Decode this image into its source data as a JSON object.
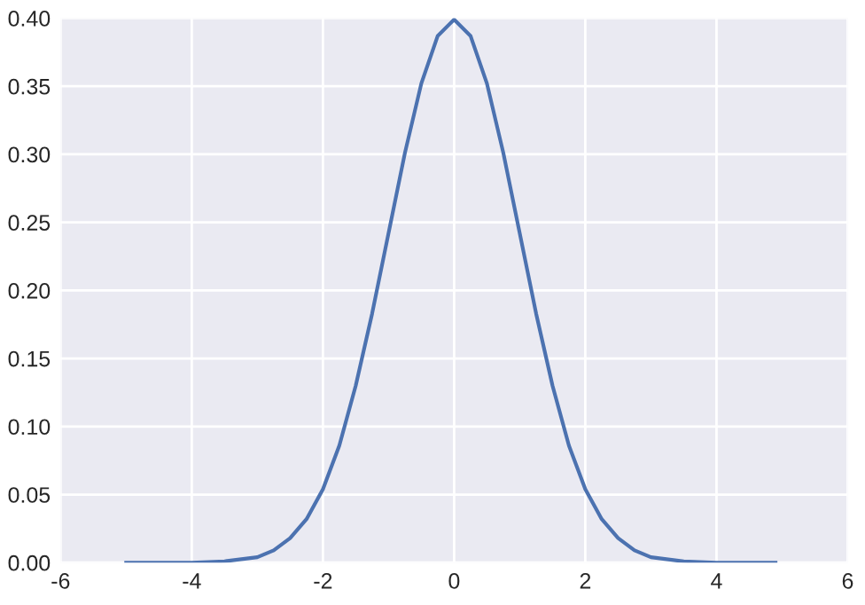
{
  "chart_data": {
    "type": "line",
    "x": [
      -5,
      -4.5,
      -4,
      -3.5,
      -3,
      -2.75,
      -2.5,
      -2.25,
      -2,
      -1.75,
      -1.5,
      -1.25,
      -1,
      -0.75,
      -0.5,
      -0.25,
      0,
      0.25,
      0.5,
      0.75,
      1,
      1.25,
      1.5,
      1.75,
      2,
      2.25,
      2.5,
      2.75,
      3,
      3.5,
      4,
      4.5,
      4.9
    ],
    "series": [
      {
        "color": "#4c72b0",
        "values": [
          0,
          0,
          0,
          0.001,
          0.004,
          0.009,
          0.018,
          0.032,
          0.054,
          0.086,
          0.13,
          0.183,
          0.242,
          0.301,
          0.352,
          0.387,
          0.399,
          0.387,
          0.352,
          0.301,
          0.242,
          0.183,
          0.13,
          0.086,
          0.054,
          0.032,
          0.018,
          0.009,
          0.004,
          0.001,
          0,
          0,
          0
        ]
      }
    ],
    "xlim": [
      -6,
      6
    ],
    "xticks": [
      -6,
      -4,
      -2,
      0,
      2,
      4,
      6
    ],
    "ylim": [
      0,
      0.4
    ],
    "yticks": [
      {
        "value": 0,
        "label": "0.00"
      },
      {
        "value": 0.05,
        "label": "0.05"
      },
      {
        "value": 0.1,
        "label": "0.10"
      },
      {
        "value": 0.15,
        "label": "0.15"
      },
      {
        "value": 0.2,
        "label": "0.20"
      },
      {
        "value": 0.25,
        "label": "0.25"
      },
      {
        "value": 0.3,
        "label": "0.30"
      },
      {
        "value": 0.35,
        "label": "0.35"
      },
      {
        "value": 0.4,
        "label": "0.40"
      }
    ],
    "grid": true,
    "marker": "none",
    "line_style": "solid"
  }
}
